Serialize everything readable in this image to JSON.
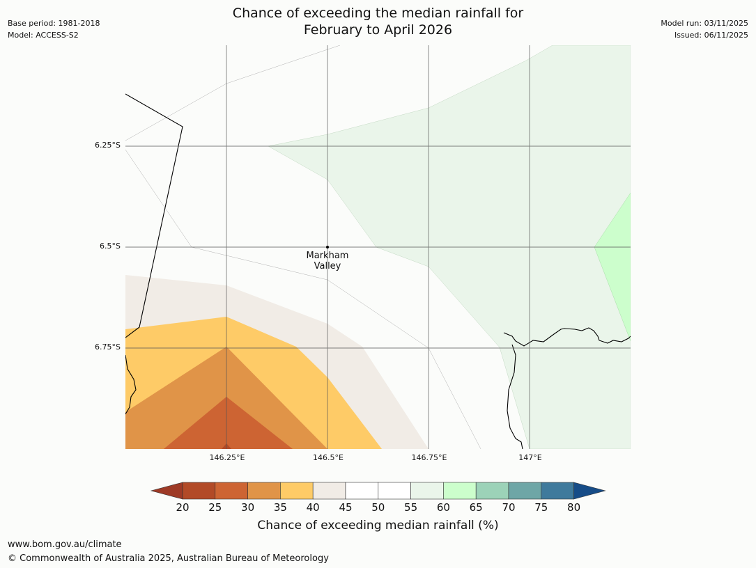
{
  "header": {
    "title_line1": "Chance of exceeding the median rainfall for",
    "title_line2": "February to April 2026",
    "base_period": "Base period: 1981-2018",
    "model": "Model: ACCESS-S2",
    "model_run": "Model run: 03/11/2025",
    "issued": "Issued: 06/11/2025"
  },
  "map": {
    "lat_labels": [
      "6.25°S",
      "6.5°S",
      "6.75°S"
    ],
    "lon_labels": [
      "146.25°E",
      "146.5°E",
      "146.75°E",
      "147°E"
    ],
    "place": {
      "line1": "Markham",
      "line2": "Valley"
    }
  },
  "colorbar": {
    "ticks": [
      "20",
      "25",
      "30",
      "35",
      "40",
      "45",
      "50",
      "55",
      "60",
      "65",
      "70",
      "75",
      "80"
    ],
    "label": "Chance of exceeding median rainfall (%)",
    "colors": [
      "#9e3a26",
      "#b24a27",
      "#cd6433",
      "#e09448",
      "#fecb67",
      "#f1ece6",
      "#ffffff",
      "#ffffff",
      "#eaf5ea",
      "#ccfecc",
      "#9cd2b8",
      "#6ea6a6",
      "#3f7a9c",
      "#164c87"
    ]
  },
  "footer": {
    "website": "www.bom.gov.au/climate",
    "copyright": "© Commonwealth of Australia 2025, Australian Bureau of Meteorology"
  }
}
